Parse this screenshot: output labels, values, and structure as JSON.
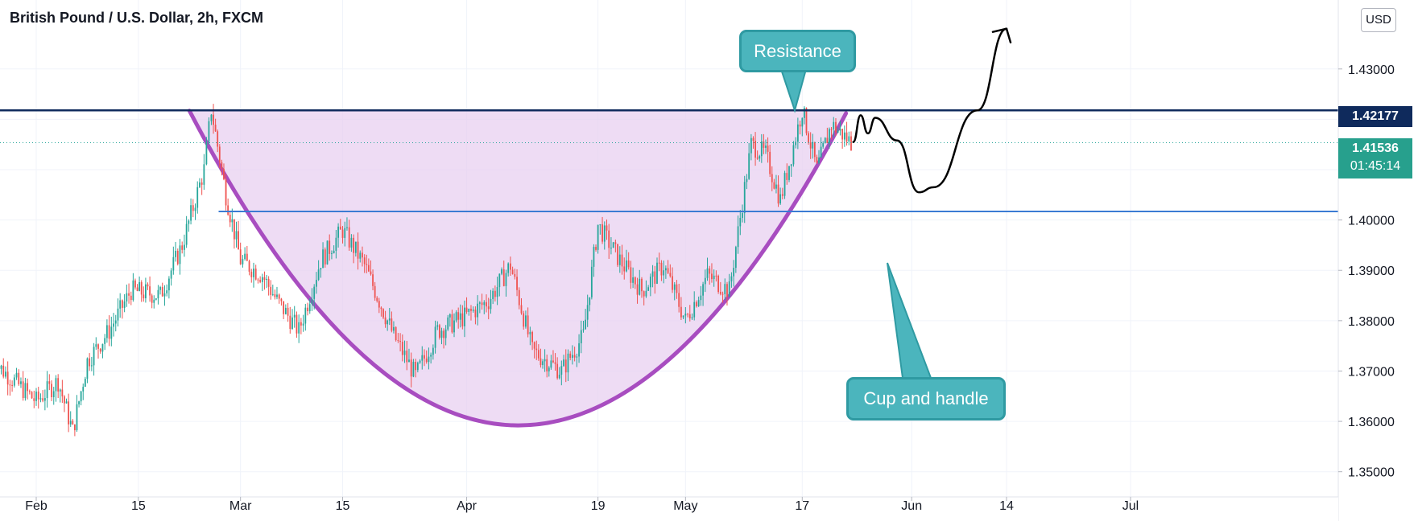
{
  "header": {
    "title": "British Pound / U.S. Dollar, 2h, FXCM",
    "currency": "USD"
  },
  "annotations": {
    "resistance": "Resistance",
    "pattern": "Cup and handle"
  },
  "price_tags": {
    "resistance": "1.42177",
    "last_price": "1.41536",
    "countdown": "01:45:14"
  },
  "colors": {
    "up": "#26a69a",
    "down": "#ef5350",
    "cup": "#a84dc0",
    "cup_fill": "#e8d0f0",
    "resistance": "#0f2a5c",
    "support": "#3b7bd3",
    "callout": "#4bb5bd",
    "projection": "#000000"
  },
  "chart_data": {
    "type": "line",
    "symbol": "British Pound / U.S. Dollar",
    "interval": "2h",
    "source": "FXCM",
    "ylim": [
      1.345,
      1.4437
    ],
    "y_ticks": [
      "1.35000",
      "1.36000",
      "1.37000",
      "1.38000",
      "1.39000",
      "1.40000",
      "1.43000"
    ],
    "x_ticks": [
      "Feb",
      "15",
      "Mar",
      "15",
      "Apr",
      "19",
      "May",
      "17",
      "Jun",
      "14",
      "Jul"
    ],
    "series": [
      {
        "x": [
          "Jan 26",
          "Jan 29",
          "Feb 1",
          "Feb 4",
          "Feb 6",
          "Feb 8",
          "Feb 11",
          "Feb 14",
          "Feb 18",
          "Feb 21",
          "Feb 24",
          "Feb 25",
          "Feb 27",
          "Mar 1",
          "Mar 4",
          "Mar 6",
          "Mar 9",
          "Mar 12",
          "Mar 15",
          "Mar 18",
          "Mar 22",
          "Mar 25",
          "Mar 28",
          "Apr 1",
          "Apr 4",
          "Apr 7",
          "Apr 10",
          "Apr 14",
          "Apr 17",
          "Apr 19",
          "Apr 22",
          "Apr 25",
          "Apr 28",
          "May 1",
          "May 4",
          "May 7",
          "May 10",
          "May 12",
          "May 14",
          "May 17",
          "May 19",
          "May 21",
          "May 24"
        ],
        "close": [
          1.372,
          1.368,
          1.364,
          1.368,
          1.358,
          1.372,
          1.378,
          1.386,
          1.385,
          1.395,
          1.41,
          1.422,
          1.405,
          1.392,
          1.389,
          1.384,
          1.378,
          1.392,
          1.398,
          1.391,
          1.377,
          1.369,
          1.378,
          1.381,
          1.384,
          1.391,
          1.374,
          1.37,
          1.377,
          1.399,
          1.392,
          1.386,
          1.391,
          1.38,
          1.389,
          1.386,
          1.415,
          1.413,
          1.404,
          1.422,
          1.41,
          1.419,
          1.415
        ]
      }
    ],
    "levels": {
      "resistance": 1.42177,
      "support": 1.4017,
      "last_price": 1.41536
    },
    "pattern_curve": [
      {
        "x": "Feb 22",
        "y": 1.4217
      },
      {
        "x": "Apr 8",
        "y": 1.3592
      },
      {
        "x": "May 23",
        "y": 1.4212
      }
    ],
    "projection": [
      {
        "x": "May 24",
        "y": 1.4155
      },
      {
        "x": "May 25",
        "y": 1.4208
      },
      {
        "x": "May 26",
        "y": 1.4172
      },
      {
        "x": "May 27",
        "y": 1.4203
      },
      {
        "x": "May 30",
        "y": 1.4158
      },
      {
        "x": "Jun 2",
        "y": 1.4055
      },
      {
        "x": "Jun 4",
        "y": 1.4065
      },
      {
        "x": "Jun 10",
        "y": 1.42177
      },
      {
        "x": "Jun 14",
        "y": 1.438
      }
    ]
  }
}
